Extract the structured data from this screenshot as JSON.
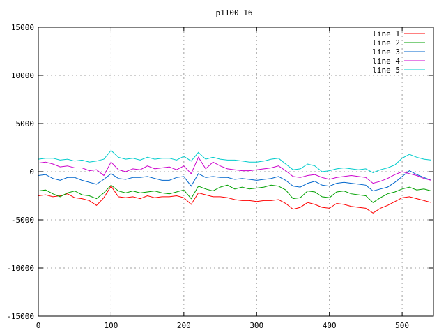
{
  "chart_data": {
    "type": "line",
    "title": "p1100_16",
    "xlabel": "",
    "ylabel": "",
    "xlim": [
      0,
      543
    ],
    "ylim": [
      -15000,
      15000
    ],
    "xticks": [
      0,
      100,
      200,
      300,
      400,
      500
    ],
    "yticks": [
      -15000,
      -10000,
      -5000,
      0,
      5000,
      10000,
      15000
    ],
    "grid": true,
    "legend_position": "top-right",
    "x": [
      0,
      10,
      20,
      30,
      40,
      50,
      60,
      70,
      80,
      90,
      100,
      110,
      120,
      130,
      140,
      150,
      160,
      170,
      180,
      190,
      200,
      210,
      220,
      230,
      240,
      250,
      260,
      270,
      280,
      290,
      300,
      310,
      320,
      330,
      340,
      350,
      360,
      370,
      380,
      390,
      400,
      410,
      420,
      430,
      440,
      450,
      460,
      470,
      480,
      490,
      500,
      510,
      520,
      530,
      540
    ],
    "series": [
      {
        "name": "line 1",
        "color": "#ff0000",
        "values": [
          -2500,
          -2400,
          -2600,
          -2500,
          -2300,
          -2700,
          -2800,
          -3000,
          -3500,
          -2700,
          -1500,
          -2600,
          -2700,
          -2600,
          -2800,
          -2500,
          -2700,
          -2600,
          -2600,
          -2500,
          -2700,
          -3400,
          -2200,
          -2400,
          -2600,
          -2600,
          -2700,
          -2900,
          -3000,
          -3000,
          -3100,
          -3000,
          -3000,
          -2900,
          -3300,
          -3900,
          -3700,
          -3200,
          -3400,
          -3700,
          -3800,
          -3300,
          -3400,
          -3600,
          -3700,
          -3800,
          -4300,
          -3800,
          -3500,
          -3100,
          -2700,
          -2600,
          -2800,
          -3000,
          -3200
        ]
      },
      {
        "name": "line 2",
        "color": "#00a000",
        "values": [
          -2000,
          -1900,
          -2300,
          -2600,
          -2200,
          -2000,
          -2400,
          -2500,
          -2800,
          -2200,
          -1400,
          -2000,
          -2200,
          -2000,
          -2200,
          -2100,
          -2000,
          -2200,
          -2300,
          -2100,
          -1900,
          -2800,
          -1500,
          -1800,
          -2000,
          -1600,
          -1400,
          -1800,
          -1600,
          -1800,
          -1700,
          -1600,
          -1400,
          -1500,
          -1900,
          -2800,
          -2700,
          -2000,
          -2100,
          -2600,
          -2700,
          -2100,
          -2000,
          -2300,
          -2400,
          -2500,
          -3200,
          -2700,
          -2300,
          -2100,
          -1800,
          -1600,
          -1900,
          -1800,
          -2000
        ]
      },
      {
        "name": "line 3",
        "color": "#0066cc",
        "values": [
          -400,
          -300,
          -700,
          -900,
          -600,
          -600,
          -900,
          -1100,
          -1300,
          -800,
          -200,
          -700,
          -800,
          -600,
          -600,
          -500,
          -700,
          -900,
          -900,
          -600,
          -500,
          -1500,
          -200,
          -600,
          -500,
          -600,
          -600,
          -800,
          -700,
          -800,
          -900,
          -800,
          -700,
          -500,
          -900,
          -1500,
          -1600,
          -1200,
          -1000,
          -1400,
          -1500,
          -1200,
          -1100,
          -1200,
          -1300,
          -1400,
          -2000,
          -1800,
          -1600,
          -1100,
          -500,
          100,
          -300,
          -600,
          -900
        ]
      },
      {
        "name": "line 4",
        "color": "#cc00cc",
        "values": [
          900,
          1000,
          800,
          500,
          600,
          400,
          400,
          100,
          200,
          -400,
          1000,
          200,
          0,
          300,
          200,
          600,
          300,
          400,
          500,
          200,
          600,
          -200,
          1500,
          300,
          1000,
          600,
          300,
          200,
          100,
          100,
          200,
          300,
          400,
          600,
          100,
          -500,
          -600,
          -400,
          -300,
          -600,
          -800,
          -600,
          -500,
          -400,
          -500,
          -600,
          -1200,
          -1000,
          -700,
          -300,
          0,
          -200,
          -400,
          -700,
          -900
        ]
      },
      {
        "name": "line 5",
        "color": "#00cccc",
        "values": [
          1300,
          1400,
          1400,
          1200,
          1300,
          1100,
          1200,
          1000,
          1100,
          1300,
          2200,
          1500,
          1300,
          1400,
          1200,
          1500,
          1300,
          1400,
          1400,
          1200,
          1600,
          1100,
          2000,
          1300,
          1500,
          1300,
          1200,
          1200,
          1100,
          1000,
          1000,
          1100,
          1300,
          1400,
          800,
          200,
          300,
          800,
          600,
          0,
          100,
          300,
          400,
          300,
          200,
          300,
          -100,
          200,
          400,
          700,
          1400,
          1800,
          1500,
          1300,
          1200
        ]
      }
    ]
  }
}
